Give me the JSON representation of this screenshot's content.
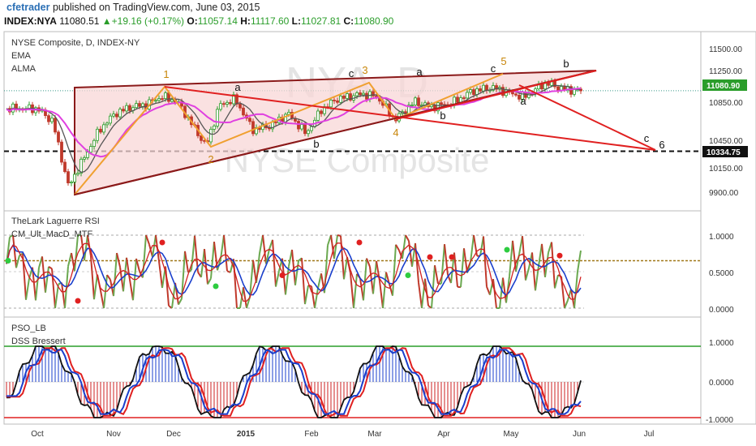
{
  "header": {
    "user": "cfetrader",
    "published": "published on TradingView.com, June 03, 2015",
    "symbol": "INDEX:NYA",
    "last": "11080.51",
    "change": "+19.16 (+0.17%)",
    "o_label": "O:",
    "o": "11057.14",
    "h_label": "H:",
    "h": "11117.60",
    "l_label": "L:",
    "l": "11027.81",
    "c_label": "C:",
    "c": "11080.90"
  },
  "colors": {
    "up": "#2a9d2a",
    "down": "#c0392b",
    "ema": "#555555",
    "alma": "#e040e0",
    "wedge": "#8b1a1a",
    "wedge_fill": "#f8d7d7",
    "trend": "#e02020",
    "wave": "#f0a030",
    "wave_label": "#c8860a",
    "green": "#6aa84f",
    "blue": "#1a3fcc"
  },
  "main_panel": {
    "title": "NYSE Composite, D, INDEX-NY",
    "ema_label": "EMA",
    "alma_label": "ALMA",
    "watermark_symbol": "NYA, D",
    "watermark_name": "NYSE Composite",
    "price_label": "11080.90",
    "hline_label": "10334.75",
    "y_ticks": [
      "11500.00",
      "11250.00",
      "10850.00",
      "10450.00",
      "10150.00",
      "9900.00"
    ],
    "wave_labels": [
      {
        "text": "1",
        "type": "orange"
      },
      {
        "text": "2",
        "type": "orange"
      },
      {
        "text": "3",
        "type": "orange"
      },
      {
        "text": "4",
        "type": "orange"
      },
      {
        "text": "5",
        "type": "orange"
      },
      {
        "text": "a",
        "type": "black"
      },
      {
        "text": "b",
        "type": "black"
      },
      {
        "text": "c",
        "type": "black"
      },
      {
        "text": "a",
        "type": "black"
      },
      {
        "text": "b",
        "type": "black"
      },
      {
        "text": "c",
        "type": "black"
      },
      {
        "text": "a",
        "type": "black"
      },
      {
        "text": "b",
        "type": "black"
      },
      {
        "text": "c",
        "type": "black"
      },
      {
        "text": "6",
        "type": "black"
      }
    ]
  },
  "rsi_panel": {
    "title": "TheLark Laguerre RSI",
    "subtitle": "CM_Ult_MacD_MTF",
    "y_ticks": [
      "1.0000",
      "0.5000",
      "0.0000"
    ]
  },
  "pso_panel": {
    "title": "PSO_LB",
    "subtitle": "DSS Bressert",
    "y_ticks": [
      "1.0000",
      "0.0000",
      "-1.0000"
    ]
  },
  "x_axis": [
    "Oct",
    "Nov",
    "Dec",
    "2015",
    "Feb",
    "Mar",
    "Apr",
    "May",
    "Jun",
    "Jul"
  ],
  "chart_data": {
    "type": "candlestick",
    "title": "NYSE Composite, D, INDEX-NY",
    "approx_daily_close": [
      {
        "date": "2014-10-01",
        "close": 10860
      },
      {
        "date": "2014-10-08",
        "close": 10700
      },
      {
        "date": "2014-10-15",
        "close": 9900
      },
      {
        "date": "2014-10-22",
        "close": 10250
      },
      {
        "date": "2014-10-29",
        "close": 10600
      },
      {
        "date": "2014-11-05",
        "close": 10800
      },
      {
        "date": "2014-11-12",
        "close": 10880
      },
      {
        "date": "2014-11-19",
        "close": 10910
      },
      {
        "date": "2014-11-26",
        "close": 11010
      },
      {
        "date": "2014-12-03",
        "close": 10950
      },
      {
        "date": "2014-12-10",
        "close": 10650
      },
      {
        "date": "2014-12-16",
        "close": 10400
      },
      {
        "date": "2014-12-22",
        "close": 10900
      },
      {
        "date": "2014-12-29",
        "close": 10980
      },
      {
        "date": "2015-01-06",
        "close": 10600
      },
      {
        "date": "2015-01-14",
        "close": 10650
      },
      {
        "date": "2015-01-22",
        "close": 10800
      },
      {
        "date": "2015-01-30",
        "close": 10550
      },
      {
        "date": "2015-02-06",
        "close": 10850
      },
      {
        "date": "2015-02-13",
        "close": 10980
      },
      {
        "date": "2015-02-24",
        "close": 11040
      },
      {
        "date": "2015-03-03",
        "close": 11010
      },
      {
        "date": "2015-03-11",
        "close": 10720
      },
      {
        "date": "2015-03-20",
        "close": 10950
      },
      {
        "date": "2015-03-27",
        "close": 10880
      },
      {
        "date": "2015-04-06",
        "close": 10930
      },
      {
        "date": "2015-04-15",
        "close": 11080
      },
      {
        "date": "2015-04-24",
        "close": 11120
      },
      {
        "date": "2015-05-01",
        "close": 11060
      },
      {
        "date": "2015-05-08",
        "close": 11000
      },
      {
        "date": "2015-05-18",
        "close": 11180
      },
      {
        "date": "2015-05-26",
        "close": 11100
      },
      {
        "date": "2015-06-02",
        "close": 11080
      }
    ],
    "last_close": 11080.9,
    "horizontal_level": 10334.75,
    "y_range": [
      9800,
      11600
    ],
    "indicators": [
      "EMA",
      "ALMA",
      "TheLark Laguerre RSI",
      "CM_Ult_MacD_MTF",
      "PSO_LB",
      "DSS Bressert"
    ]
  }
}
